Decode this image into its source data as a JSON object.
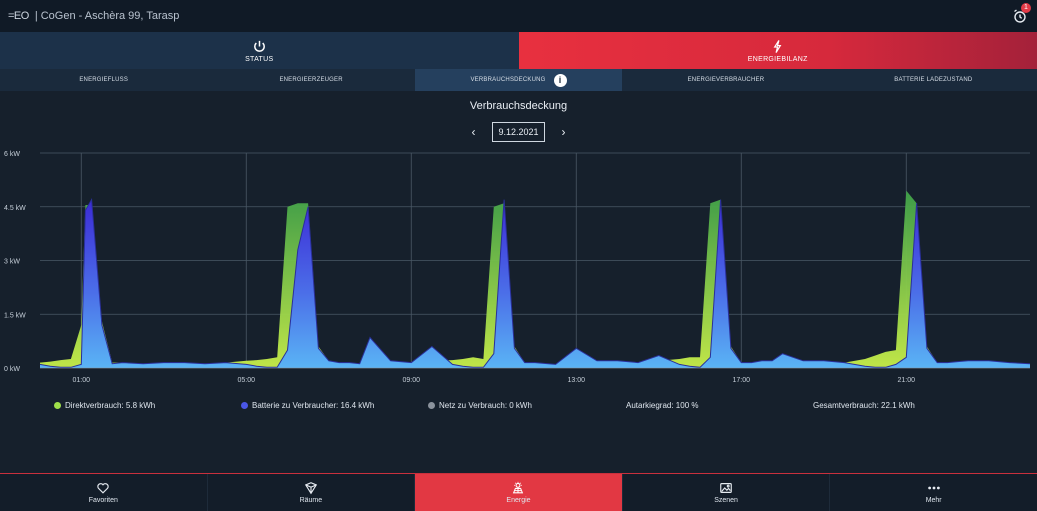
{
  "header": {
    "logo": "=EO",
    "title": "| CoGen - Aschèra 99, Tarasp",
    "alarm_icon": "alarm-clock-icon",
    "alarm_count": "1"
  },
  "modes": [
    {
      "label": "STATUS",
      "icon": "power-icon"
    },
    {
      "label": "ENERGIEBILANZ",
      "icon": "lightning-icon"
    }
  ],
  "subtabs": [
    "ENERGIEFLUSS",
    "ENERGIEERZEUGER",
    "VERBRAUCHSDECKUNG",
    "ENERGIEVERBRAUCHER",
    "BATTERIE LADEZUSTAND"
  ],
  "page": {
    "title": "Verbrauchsdeckung",
    "date": "9.12.2021",
    "prev": "‹",
    "next": "›"
  },
  "legend": {
    "direct": "Direktverbrauch: 5.8 kWh",
    "battery": "Batterie zu Verbraucher: 16.4 kWh",
    "grid": "Netz zu Verbrauch: 0 kWh",
    "autarky": "Autarkiegrad: 100 %",
    "total": "Gesamtverbrauch: 22.1 kWh"
  },
  "colors": {
    "direct": "#9fe04a",
    "battery": "#4a56e6",
    "grid": "#8a929c",
    "accent": "#e23843"
  },
  "bottomnav": [
    {
      "label": "Favoriten",
      "icon": "heart-icon"
    },
    {
      "label": "Räume",
      "icon": "cube-icon"
    },
    {
      "label": "Energie",
      "icon": "energy-icon"
    },
    {
      "label": "Szenen",
      "icon": "image-icon"
    },
    {
      "label": "Mehr",
      "icon": "more-icon"
    }
  ],
  "chart_data": {
    "type": "area",
    "ylabel_ticks": [
      "0 kW",
      "1.5 kW",
      "3 kW",
      "4.5 kW",
      "6 kW"
    ],
    "ylim": [
      0,
      6
    ],
    "xticks": [
      "01:00",
      "05:00",
      "09:00",
      "13:00",
      "17:00",
      "21:00"
    ],
    "xlim": [
      0,
      24
    ],
    "grid": true,
    "series": [
      {
        "name": "Direktverbrauch",
        "x": [
          0,
          0.25,
          0.5,
          0.75,
          1.0,
          1.1,
          1.25,
          1.5,
          1.75,
          2,
          2.5,
          3,
          3.5,
          4,
          4.5,
          5,
          5.25,
          5.5,
          5.75,
          6,
          6.25,
          6.5,
          6.75,
          7,
          7.25,
          7.5,
          7.75,
          8,
          8.5,
          9,
          9.5,
          10,
          10.25,
          10.5,
          10.75,
          11,
          11.25,
          11.5,
          11.75,
          12,
          12.5,
          13,
          13.5,
          14,
          14.5,
          15,
          15.5,
          15.75,
          16,
          16.25,
          16.5,
          16.75,
          17,
          17.25,
          17.5,
          17.75,
          18,
          18.5,
          19,
          19.5,
          20,
          20.25,
          20.5,
          20.75,
          21,
          21.25,
          21.5,
          21.75,
          22,
          22.25,
          22.5,
          23,
          23.5,
          24
        ],
        "values": [
          0.15,
          0.18,
          0.22,
          0.25,
          1.2,
          4.55,
          4.55,
          1.3,
          0.15,
          0.15,
          0.12,
          0.15,
          0.15,
          0.12,
          0.15,
          0.2,
          0.22,
          0.25,
          0.3,
          4.5,
          4.6,
          4.6,
          0.6,
          0.2,
          0.15,
          0.15,
          0.12,
          0.2,
          0.2,
          0.15,
          0.2,
          0.22,
          0.25,
          0.3,
          0.25,
          4.5,
          4.6,
          0.6,
          0.15,
          0.15,
          0.1,
          0.15,
          0.2,
          0.2,
          0.15,
          0.2,
          0.25,
          0.3,
          0.3,
          4.6,
          4.7,
          0.6,
          0.15,
          0.15,
          0.2,
          0.2,
          0.15,
          0.2,
          0.2,
          0.15,
          0.25,
          0.35,
          0.45,
          0.5,
          4.95,
          4.6,
          0.6,
          0.15,
          0.15,
          0.18,
          0.2,
          0.2,
          0.15,
          0.12
        ]
      },
      {
        "name": "Batterie zu Verbraucher",
        "x": [
          0,
          0.25,
          0.5,
          0.75,
          1.0,
          1.1,
          1.25,
          1.5,
          1.75,
          2,
          2.5,
          3,
          3.5,
          4,
          4.5,
          5,
          5.25,
          5.5,
          5.75,
          6,
          6.25,
          6.5,
          6.75,
          7,
          7.25,
          7.5,
          7.75,
          8,
          8.5,
          9,
          9.5,
          10,
          10.25,
          10.5,
          10.75,
          11,
          11.25,
          11.5,
          11.75,
          12,
          12.5,
          13,
          13.5,
          14,
          14.5,
          15,
          15.5,
          15.75,
          16,
          16.25,
          16.5,
          16.75,
          17,
          17.25,
          17.5,
          17.75,
          18,
          18.5,
          19,
          19.5,
          20,
          20.25,
          20.5,
          20.75,
          21,
          21.25,
          21.5,
          21.75,
          22,
          22.25,
          22.5,
          23,
          23.5,
          24
        ],
        "values": [
          0.1,
          0.05,
          0.02,
          0.02,
          0.1,
          4.4,
          4.7,
          1.2,
          0.12,
          0.15,
          0.12,
          0.15,
          0.15,
          0.12,
          0.15,
          0.1,
          0.05,
          0.02,
          0.02,
          0.5,
          3.3,
          4.5,
          0.55,
          0.2,
          0.15,
          0.15,
          0.12,
          0.85,
          0.2,
          0.15,
          0.6,
          0.1,
          0.05,
          0.02,
          0.02,
          0.4,
          4.7,
          0.55,
          0.15,
          0.15,
          0.1,
          0.55,
          0.2,
          0.2,
          0.15,
          0.35,
          0.1,
          0.05,
          0.02,
          0.3,
          4.7,
          0.55,
          0.15,
          0.15,
          0.2,
          0.2,
          0.4,
          0.2,
          0.2,
          0.15,
          0.05,
          0.02,
          0.02,
          0.1,
          0.3,
          4.6,
          0.55,
          0.15,
          0.15,
          0.18,
          0.2,
          0.2,
          0.15,
          0.12
        ]
      },
      {
        "name": "Netz zu Verbrauch",
        "x": [
          0,
          24
        ],
        "values": [
          0,
          0
        ]
      }
    ]
  }
}
